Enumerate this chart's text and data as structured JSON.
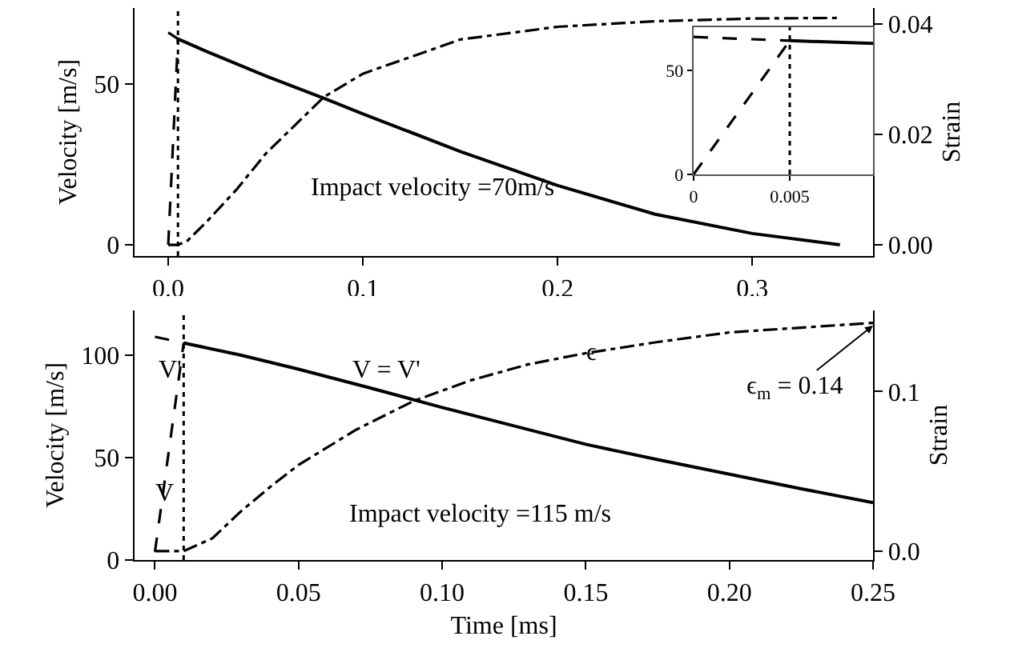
{
  "chart_data": [
    {
      "type": "line",
      "ylabel": "Velocity [m/s]",
      "y2label": "Strain",
      "annotations": [
        "Impact velocity =70m/s"
      ],
      "xlim": [
        -0.0173,
        0.362
      ],
      "xticks": [
        {
          "value": 0,
          "label": "0.0"
        },
        0.1,
        0.2,
        0.3
      ],
      "ylim": [
        -3.5,
        73.6
      ],
      "yticks": [
        0,
        50
      ],
      "y2lim": [
        -0.002,
        0.0429
      ],
      "y2ticks": [
        {
          "value": 0,
          "label": "0.00"
        },
        0.02,
        0.04
      ],
      "ref_lines": [
        {
          "axis": "x",
          "value": 0.005,
          "line_style": "dotted",
          "color": "#000000"
        }
      ],
      "series": [
        {
          "color": "#000000",
          "line_style": "solid",
          "x": [
            0.005,
            0.02,
            0.05,
            0.08,
            0.1,
            0.15,
            0.2,
            0.25,
            0.3,
            0.345
          ],
          "values": [
            64,
            60,
            52.5,
            45.5,
            40.7,
            29,
            18.4,
            9.5,
            3.5,
            0
          ]
        },
        {
          "color": "#000000",
          "line_style": "dashed",
          "x": [
            0,
            0.005
          ],
          "values": [
            0,
            64
          ]
        },
        {
          "color": "#000000",
          "line_style": "dashed",
          "x": [
            0,
            0.005
          ],
          "values": [
            66,
            64
          ]
        },
        {
          "color": "#000000",
          "line_style": "dashdot",
          "axis": "y2",
          "x": [
            0,
            0.005,
            0.01,
            0.02,
            0.035,
            0.05,
            0.08,
            0.1,
            0.15,
            0.2,
            0.25,
            0.3,
            0.345
          ],
          "values": [
            0,
            0,
            0.0008,
            0.0043,
            0.01,
            0.0165,
            0.0268,
            0.031,
            0.0372,
            0.0395,
            0.0405,
            0.041,
            0.0411
          ]
        }
      ]
    },
    {
      "type": "line",
      "xlim": [
        0,
        0.00933
      ],
      "xticks": [
        0,
        0.005
      ],
      "ylim": [
        0,
        70.9
      ],
      "yticks": [
        0,
        50
      ],
      "ref_lines": [
        {
          "axis": "x",
          "value": 0.005,
          "line_style": "dotted",
          "color": "#000000"
        }
      ],
      "series": [
        {
          "color": "#000000",
          "line_style": "solid",
          "x": [
            0.005,
            0.00933
          ],
          "values": [
            64.4,
            63.1
          ]
        },
        {
          "color": "#000000",
          "line_style": "dashed",
          "x": [
            0,
            0.005
          ],
          "values": [
            0,
            64.4
          ]
        },
        {
          "color": "#000000",
          "line_style": "dashed",
          "x": [
            0,
            0.005
          ],
          "values": [
            66.2,
            64.4
          ]
        }
      ]
    },
    {
      "type": "line",
      "xlabel": "Time [ms]",
      "ylabel": "Velocity [m/s]",
      "y2label": "Strain",
      "annotations": [
        "V'",
        "V",
        "V = V'",
        "ϵ",
        {
          "text": "ϵ$_{m}$ = 0.14",
          "x": 0.25,
          "y": 114.5
        },
        "Impact velocity =115 m/s"
      ],
      "xlim": [
        -0.0071,
        0.25
      ],
      "xticks": [
        {
          "value": 0,
          "label": "0.00"
        },
        0.05,
        {
          "value": 0.1,
          "label": "0.10"
        },
        0.15,
        {
          "value": 0.2,
          "label": "0.20"
        },
        0.25
      ],
      "ylim": [
        0,
        121.9
      ],
      "yticks": [
        0,
        50,
        100
      ],
      "y2lim": [
        -0.0056,
        0.1508
      ],
      "y2ticks": [
        {
          "value": 0,
          "label": "0.0"
        },
        0.1
      ],
      "ref_lines": [
        {
          "axis": "x",
          "value": 0.01,
          "line_style": "dotted",
          "color": "#000000"
        }
      ],
      "series": [
        {
          "color": "#000000",
          "line_style": "solid",
          "x": [
            0.01,
            0.03,
            0.05,
            0.075,
            0.1,
            0.125,
            0.15,
            0.175,
            0.2,
            0.225,
            0.25
          ],
          "values": [
            106,
            100,
            93.2,
            84,
            74.5,
            65.5,
            56.5,
            49,
            41.9,
            34.8,
            28
          ]
        },
        {
          "color": "#000000",
          "line_style": "dashed",
          "x": [
            0,
            0.01
          ],
          "values": [
            4,
            106
          ]
        },
        {
          "color": "#000000",
          "line_style": "dashed",
          "x": [
            0,
            0.01
          ],
          "values": [
            109,
            106
          ]
        },
        {
          "color": "#000000",
          "line_style": "dashdot",
          "axis": "y2",
          "x": [
            0,
            0.01,
            0.02,
            0.03,
            0.04,
            0.05,
            0.07,
            0.09,
            0.11,
            0.13,
            0.15,
            0.175,
            0.2,
            0.225,
            0.25
          ],
          "values": [
            0,
            0,
            0.008,
            0.025,
            0.04,
            0.054,
            0.076,
            0.094,
            0.107,
            0.117,
            0.124,
            0.131,
            0.137,
            0.14,
            0.143
          ]
        }
      ]
    }
  ]
}
